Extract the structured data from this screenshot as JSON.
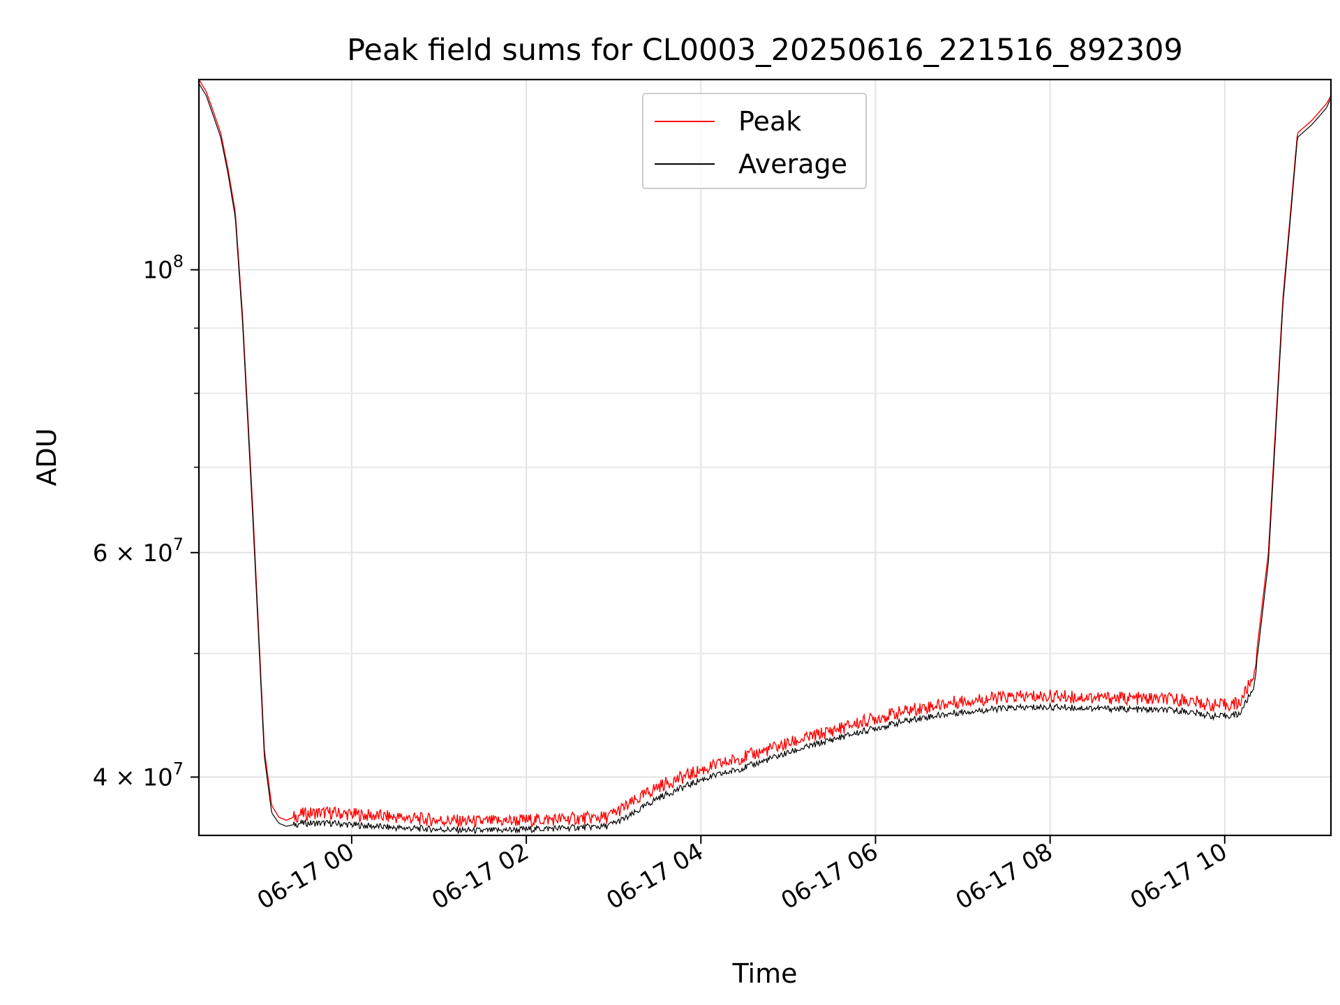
{
  "chart_data": {
    "type": "line",
    "title": "Peak field sums for CL0003_20250616_221516_892309",
    "xlabel": "Time",
    "ylabel": "ADU",
    "yscale": "log",
    "ylim": [
      36000000,
      141000000
    ],
    "xlim": [
      "06-16 22:15",
      "06-17 11:13"
    ],
    "x_ticks": [
      "06-17 00",
      "06-17 02",
      "06-17 04",
      "06-17 06",
      "06-17 08",
      "06-17 10"
    ],
    "y_ticks": [
      "10^8",
      "6 × 10^7",
      "4 × 10^7"
    ],
    "grid": true,
    "legend_position": "upper center",
    "series": [
      {
        "name": "Peak",
        "color": "#ff0000",
        "x": [
          "06-16 22:15",
          "06-16 22:20",
          "06-16 22:25",
          "06-16 22:30",
          "06-16 22:35",
          "06-16 22:40",
          "06-16 22:45",
          "06-16 22:52",
          "06-16 23:00",
          "06-16 23:05",
          "06-16 23:10",
          "06-16 23:15",
          "06-16 23:25",
          "06-16 23:35",
          "06-16 23:45",
          "06-17 00:00",
          "06-17 00:30",
          "06-17 01:00",
          "06-17 01:30",
          "06-17 02:00",
          "06-17 02:30",
          "06-17 02:55",
          "06-17 03:10",
          "06-17 03:30",
          "06-17 04:00",
          "06-17 04:30",
          "06-17 05:00",
          "06-17 05:30",
          "06-17 06:00",
          "06-17 06:30",
          "06-17 07:00",
          "06-17 07:30",
          "06-17 08:00",
          "06-17 08:30",
          "06-17 09:00",
          "06-17 09:30",
          "06-17 09:55",
          "06-17 10:10",
          "06-17 10:20",
          "06-17 10:30",
          "06-17 10:40",
          "06-17 10:50",
          "06-17 11:00",
          "06-17 11:10",
          "06-17 11:13"
        ],
        "y": [
          141000000,
          138000000,
          133000000,
          128000000,
          120000000,
          111000000,
          92000000,
          65000000,
          42000000,
          38000000,
          37200000,
          37000000,
          37400000,
          37500000,
          37500000,
          37400000,
          37200000,
          37000000,
          36900000,
          37000000,
          37100000,
          37200000,
          38000000,
          39300000,
          40500000,
          41500000,
          42500000,
          43500000,
          44500000,
          45300000,
          45900000,
          46200000,
          46300000,
          46200000,
          46100000,
          46000000,
          45500000,
          45700000,
          48000000,
          60000000,
          95000000,
          128000000,
          131000000,
          135000000,
          137000000
        ]
      },
      {
        "name": "Average",
        "color": "#000000",
        "x": [
          "06-16 22:15",
          "06-16 22:20",
          "06-16 22:25",
          "06-16 22:30",
          "06-16 22:35",
          "06-16 22:40",
          "06-16 22:45",
          "06-16 22:52",
          "06-16 23:00",
          "06-16 23:05",
          "06-16 23:10",
          "06-16 23:15",
          "06-16 23:25",
          "06-16 23:35",
          "06-16 23:45",
          "06-17 00:00",
          "06-17 00:30",
          "06-17 01:00",
          "06-17 01:30",
          "06-17 02:00",
          "06-17 02:30",
          "06-17 02:55",
          "06-17 03:10",
          "06-17 03:30",
          "06-17 04:00",
          "06-17 04:30",
          "06-17 05:00",
          "06-17 05:30",
          "06-17 06:00",
          "06-17 06:30",
          "06-17 07:00",
          "06-17 07:30",
          "06-17 08:00",
          "06-17 08:30",
          "06-17 09:00",
          "06-17 09:30",
          "06-17 09:55",
          "06-17 10:10",
          "06-17 10:20",
          "06-17 10:30",
          "06-17 10:40",
          "06-17 10:50",
          "06-17 11:00",
          "06-17 11:10",
          "06-17 11:13"
        ],
        "y": [
          140000000,
          137000000,
          132000000,
          127000000,
          119000000,
          110000000,
          91000000,
          64000000,
          41500000,
          37500000,
          36800000,
          36600000,
          36800000,
          36800000,
          36800000,
          36700000,
          36500000,
          36400000,
          36300000,
          36400000,
          36500000,
          36600000,
          37200000,
          38500000,
          39800000,
          40700000,
          41800000,
          42800000,
          43700000,
          44500000,
          45000000,
          45300000,
          45400000,
          45300000,
          45200000,
          45100000,
          44600000,
          44800000,
          47000000,
          59000000,
          94000000,
          127000000,
          130000000,
          134000000,
          136500000
        ]
      }
    ]
  }
}
